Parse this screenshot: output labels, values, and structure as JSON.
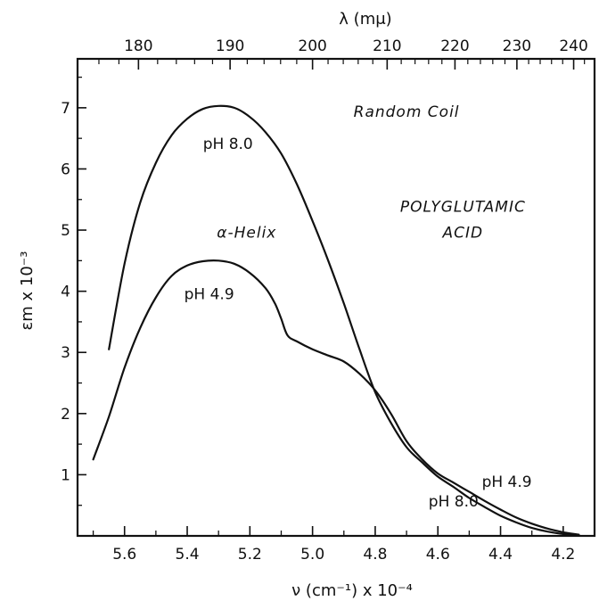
{
  "chart_data": {
    "type": "line",
    "title": "",
    "xlabel": "ν (cm⁻¹) x 10⁻⁴",
    "ylabel": "εm x 10⁻³",
    "top_xlabel": "λ (mμ)",
    "xlim": [
      5.75,
      4.1
    ],
    "ylim": [
      0,
      7.8
    ],
    "x_reversed": true,
    "grid": false,
    "x_ticks": [
      {
        "value": 5.6,
        "label": "5.6"
      },
      {
        "value": 5.4,
        "label": "5.4"
      },
      {
        "value": 5.2,
        "label": "5.2"
      },
      {
        "value": 5.0,
        "label": "5.0"
      },
      {
        "value": 4.8,
        "label": "4.8"
      },
      {
        "value": 4.6,
        "label": "4.6"
      },
      {
        "value": 4.4,
        "label": "4.4"
      },
      {
        "value": 4.2,
        "label": "4.2"
      }
    ],
    "y_ticks": [
      {
        "value": 1,
        "label": "1"
      },
      {
        "value": 2,
        "label": "2"
      },
      {
        "value": 3,
        "label": "3"
      },
      {
        "value": 4,
        "label": "4"
      },
      {
        "value": 5,
        "label": "5"
      },
      {
        "value": 6,
        "label": "6"
      },
      {
        "value": 7,
        "label": "7"
      }
    ],
    "top_ticks": [
      {
        "value": 180,
        "label": "180"
      },
      {
        "value": 190,
        "label": "190"
      },
      {
        "value": 200,
        "label": "200"
      },
      {
        "value": 210,
        "label": "210"
      },
      {
        "value": 220,
        "label": "220"
      },
      {
        "value": 230,
        "label": "230"
      },
      {
        "value": 240,
        "label": "240"
      }
    ],
    "series": [
      {
        "name": "Random Coil",
        "condition": "pH 8.0",
        "x": [
          5.65,
          5.6,
          5.55,
          5.5,
          5.45,
          5.4,
          5.35,
          5.3,
          5.25,
          5.2,
          5.15,
          5.1,
          5.05,
          5.0,
          4.95,
          4.9,
          4.85,
          4.8,
          4.75,
          4.7,
          4.65,
          4.6,
          4.55,
          4.5,
          4.45,
          4.4,
          4.35,
          4.3,
          4.25,
          4.2,
          4.15
        ],
        "y": [
          3.05,
          4.45,
          5.45,
          6.1,
          6.55,
          6.82,
          6.98,
          7.03,
          7.0,
          6.85,
          6.6,
          6.25,
          5.75,
          5.15,
          4.5,
          3.8,
          3.05,
          2.35,
          1.85,
          1.45,
          1.2,
          0.97,
          0.8,
          0.62,
          0.47,
          0.33,
          0.22,
          0.13,
          0.07,
          0.03,
          0.01
        ]
      },
      {
        "name": "α-Helix",
        "condition": "pH 4.9",
        "x": [
          5.7,
          5.65,
          5.6,
          5.55,
          5.5,
          5.45,
          5.4,
          5.35,
          5.3,
          5.25,
          5.2,
          5.15,
          5.12,
          5.1,
          5.08,
          5.05,
          5.0,
          4.95,
          4.9,
          4.85,
          4.8,
          4.75,
          4.7,
          4.65,
          4.6,
          4.55,
          4.5,
          4.45,
          4.4,
          4.35,
          4.3,
          4.25,
          4.2,
          4.15
        ],
        "y": [
          1.25,
          1.95,
          2.75,
          3.4,
          3.9,
          4.25,
          4.42,
          4.49,
          4.5,
          4.45,
          4.3,
          4.05,
          3.8,
          3.55,
          3.28,
          3.18,
          3.05,
          2.95,
          2.85,
          2.65,
          2.38,
          2.0,
          1.55,
          1.25,
          1.02,
          0.87,
          0.72,
          0.57,
          0.43,
          0.3,
          0.2,
          0.12,
          0.06,
          0.02
        ]
      }
    ],
    "annotations": [
      {
        "text": "Random Coil",
        "style": "italic",
        "x": 4.7,
        "y": 6.85
      },
      {
        "text": "pH 8.0",
        "style": "normal",
        "x": 5.27,
        "y": 6.33
      },
      {
        "text": "POLYGLUTAMIC",
        "style": "italic",
        "x": 4.52,
        "y": 5.3
      },
      {
        "text": "ACID",
        "style": "italic",
        "x": 4.52,
        "y": 4.88
      },
      {
        "text": "α-Helix",
        "style": "italic",
        "x": 5.21,
        "y": 4.88
      },
      {
        "text": "pH 4.9",
        "style": "normal",
        "x": 5.33,
        "y": 3.87
      },
      {
        "text": "pH 4.9",
        "style": "normal",
        "x": 4.38,
        "y": 0.8
      },
      {
        "text": "pH 8.0",
        "style": "normal",
        "x": 4.55,
        "y": 0.48
      }
    ],
    "colors": {
      "line": "#111111",
      "background": "#ffffff"
    }
  }
}
